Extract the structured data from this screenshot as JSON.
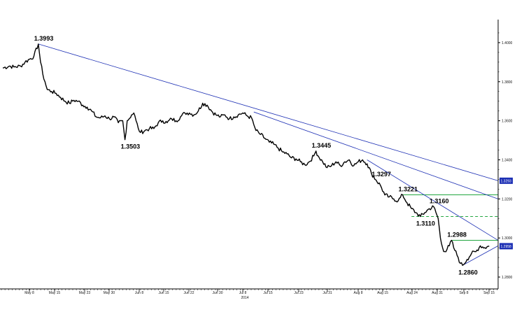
{
  "chart_data": {
    "type": "line",
    "title": "",
    "xlabel": "",
    "ylabel": "",
    "ylim": [
      1.275,
      1.41
    ],
    "grid": false,
    "y_ticks": [
      "1.4000",
      "1.3800",
      "1.3600",
      "1.3400",
      "1.3200",
      "1.3000",
      "1.2800"
    ],
    "x_ticks": [
      "May 8",
      "May 15",
      "May 23",
      "May 30",
      "Jun 8",
      "Jun 15",
      "Jun 22",
      "Jun 30",
      "Jul 8",
      "Jul 15",
      "Jul 23",
      "Jul 31",
      "Aug 8",
      "Aug 15",
      "Aug 24",
      "Aug 31",
      "Sep 8",
      "Sep 15"
    ],
    "year_label": "2014",
    "series": [
      {
        "values": [
          [
            0,
            1.387
          ],
          [
            3,
            1.388
          ],
          [
            5,
            1.3875
          ],
          [
            8,
            1.388
          ],
          [
            10,
            1.39
          ],
          [
            12,
            1.3915
          ],
          [
            14,
            1.393
          ],
          [
            16,
            1.3993
          ],
          [
            17,
            1.39
          ],
          [
            18,
            1.384
          ],
          [
            19,
            1.38
          ],
          [
            20,
            1.376
          ],
          [
            22,
            1.375
          ],
          [
            24,
            1.374
          ],
          [
            26,
            1.372
          ],
          [
            28,
            1.37
          ],
          [
            30,
            1.369
          ],
          [
            32,
            1.3705
          ],
          [
            34,
            1.37
          ],
          [
            36,
            1.368
          ],
          [
            38,
            1.367
          ],
          [
            40,
            1.365
          ],
          [
            42,
            1.362
          ],
          [
            44,
            1.3615
          ],
          [
            46,
            1.3625
          ],
          [
            48,
            1.361
          ],
          [
            50,
            1.362
          ],
          [
            52,
            1.359
          ],
          [
            54,
            1.36
          ],
          [
            55,
            1.3503
          ],
          [
            56,
            1.36
          ],
          [
            58,
            1.363
          ],
          [
            59,
            1.364
          ],
          [
            60,
            1.36
          ],
          [
            61,
            1.356
          ],
          [
            62,
            1.354
          ],
          [
            64,
            1.355
          ],
          [
            66,
            1.356
          ],
          [
            68,
            1.356
          ],
          [
            70,
            1.359
          ],
          [
            72,
            1.36
          ],
          [
            74,
            1.359
          ],
          [
            76,
            1.361
          ],
          [
            78,
            1.36
          ],
          [
            80,
            1.362
          ],
          [
            82,
            1.364
          ],
          [
            84,
            1.364
          ],
          [
            86,
            1.363
          ],
          [
            88,
            1.365
          ],
          [
            90,
            1.369
          ],
          [
            92,
            1.368
          ],
          [
            94,
            1.365
          ],
          [
            96,
            1.363
          ],
          [
            98,
            1.362
          ],
          [
            100,
            1.363
          ],
          [
            102,
            1.361
          ],
          [
            104,
            1.362
          ],
          [
            106,
            1.363
          ],
          [
            108,
            1.364
          ],
          [
            110,
            1.3625
          ],
          [
            112,
            1.3615
          ],
          [
            113,
            1.358
          ],
          [
            114,
            1.355
          ],
          [
            116,
            1.353
          ],
          [
            118,
            1.351
          ],
          [
            120,
            1.349
          ],
          [
            122,
            1.348
          ],
          [
            124,
            1.346
          ],
          [
            126,
            1.344
          ],
          [
            128,
            1.343
          ],
          [
            130,
            1.341
          ],
          [
            132,
            1.3405
          ],
          [
            134,
            1.339
          ],
          [
            136,
            1.3375
          ],
          [
            138,
            1.339
          ],
          [
            140,
            1.342
          ],
          [
            141,
            1.3445
          ],
          [
            142,
            1.342
          ],
          [
            144,
            1.339
          ],
          [
            146,
            1.336
          ],
          [
            148,
            1.337
          ],
          [
            150,
            1.339
          ],
          [
            152,
            1.337
          ],
          [
            154,
            1.339
          ],
          [
            156,
            1.34
          ],
          [
            158,
            1.337
          ],
          [
            160,
            1.339
          ],
          [
            162,
            1.34
          ],
          [
            164,
            1.338
          ],
          [
            166,
            1.333
          ],
          [
            168,
            1.3297
          ],
          [
            170,
            1.327
          ],
          [
            172,
            1.322
          ],
          [
            174,
            1.321
          ],
          [
            176,
            1.32
          ],
          [
            178,
            1.319
          ],
          [
            180,
            1.3221
          ],
          [
            182,
            1.318
          ],
          [
            184,
            1.315
          ],
          [
            186,
            1.313
          ],
          [
            188,
            1.311
          ],
          [
            190,
            1.313
          ],
          [
            192,
            1.315
          ],
          [
            194,
            1.316
          ],
          [
            196,
            1.31
          ],
          [
            197,
            1.3
          ],
          [
            198,
            1.295
          ],
          [
            199,
            1.293
          ],
          [
            201,
            1.296
          ],
          [
            202,
            1.2988
          ],
          [
            203,
            1.295
          ],
          [
            205,
            1.29
          ],
          [
            206,
            1.287
          ],
          [
            207,
            1.286
          ],
          [
            209,
            1.289
          ],
          [
            211,
            1.292
          ],
          [
            213,
            1.293
          ],
          [
            215,
            1.296
          ],
          [
            217,
            1.295
          ],
          [
            219,
            1.2958
          ]
        ]
      }
    ],
    "annotations": [
      {
        "text": "1.3993",
        "x": 16,
        "y": 1.3993,
        "anchor": "above"
      },
      {
        "text": "1.3503",
        "x": 55,
        "y": 1.3503,
        "anchor": "below"
      },
      {
        "text": "1.3445",
        "x": 141,
        "y": 1.3445,
        "anchor": "above"
      },
      {
        "text": "1.3297",
        "x": 168,
        "y": 1.3297,
        "anchor": "above"
      },
      {
        "text": "1.3221",
        "x": 180,
        "y": 1.3221,
        "anchor": "above"
      },
      {
        "text": "1.3160",
        "x": 194,
        "y": 1.316,
        "anchor": "above"
      },
      {
        "text": "1.3110",
        "x": 188,
        "y": 1.311,
        "anchor": "below"
      },
      {
        "text": "1.2988",
        "x": 202,
        "y": 1.2988,
        "anchor": "above"
      },
      {
        "text": "1.2860",
        "x": 207,
        "y": 1.286,
        "anchor": "below"
      }
    ],
    "trendlines": [
      {
        "x1": 16,
        "y1": 1.3993,
        "x2": 223,
        "y2": 1.3293,
        "color": "#1c2fb4"
      },
      {
        "x1": 113,
        "y1": 1.3645,
        "x2": 223,
        "y2": 1.32,
        "color": "#1c2fb4"
      },
      {
        "x1": 164,
        "y1": 1.34,
        "x2": 223,
        "y2": 1.2988,
        "color": "#1c2fb4"
      },
      {
        "x1": 207,
        "y1": 1.286,
        "x2": 223,
        "y2": 1.296,
        "color": "#1c2fb4"
      }
    ],
    "levels": [
      {
        "y": 1.3221,
        "x_from": 180,
        "style": "solid",
        "color": "#22a640"
      },
      {
        "y": 1.311,
        "x_from": 184,
        "style": "dashed",
        "color": "#22a640"
      },
      {
        "y": 1.2988,
        "x_from": 202,
        "style": "solid",
        "color": "#22a640"
      }
    ],
    "badges": [
      {
        "text": "1.3293",
        "y": 1.3293,
        "color": "#1c2fb4"
      },
      {
        "text": "1.2958",
        "y": 1.2958,
        "color": "#1c2fb4"
      }
    ],
    "colors": {
      "price": "#000000",
      "trend": "#1c2fb4",
      "level": "#22a640"
    }
  }
}
